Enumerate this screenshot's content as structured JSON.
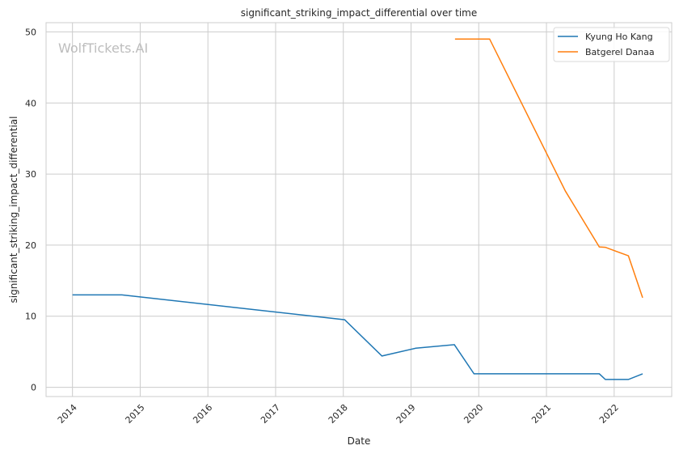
{
  "chart_data": {
    "type": "line",
    "title": "significant_striking_impact_differential over time",
    "xlabel": "Date",
    "ylabel": "significant_striking_impact_differential",
    "xlim": [
      2013.61,
      2022.85
    ],
    "ylim": [
      -1.3,
      51.3
    ],
    "x_ticks": [
      2014,
      2015,
      2016,
      2017,
      2018,
      2019,
      2020,
      2021,
      2022
    ],
    "x_tick_labels": [
      "2014",
      "2015",
      "2016",
      "2017",
      "2018",
      "2019",
      "2020",
      "2021",
      "2022"
    ],
    "y_ticks": [
      0,
      10,
      20,
      30,
      40,
      50
    ],
    "y_tick_labels": [
      "0",
      "10",
      "20",
      "30",
      "40",
      "50"
    ],
    "grid": true,
    "legend_position": "top-right",
    "watermark": "WolfTickets.AI",
    "series": [
      {
        "name": "Kyung Ho Kang",
        "color": "#1f77b4",
        "x": [
          2014.0,
          2014.73,
          2018.02,
          2018.57,
          2019.07,
          2019.64,
          2019.93,
          2021.78,
          2021.87,
          2022.21,
          2022.42
        ],
        "y": [
          13.0,
          13.0,
          9.5,
          4.4,
          5.5,
          6.0,
          1.9,
          1.9,
          1.1,
          1.1,
          1.9
        ]
      },
      {
        "name": "Batgerel Danaa",
        "color": "#ff7f0e",
        "x": [
          2019.65,
          2020.16,
          2021.28,
          2021.78,
          2021.87,
          2022.21,
          2022.42
        ],
        "y": [
          49.0,
          49.0,
          27.6,
          19.75,
          19.7,
          18.5,
          12.6
        ]
      }
    ]
  }
}
